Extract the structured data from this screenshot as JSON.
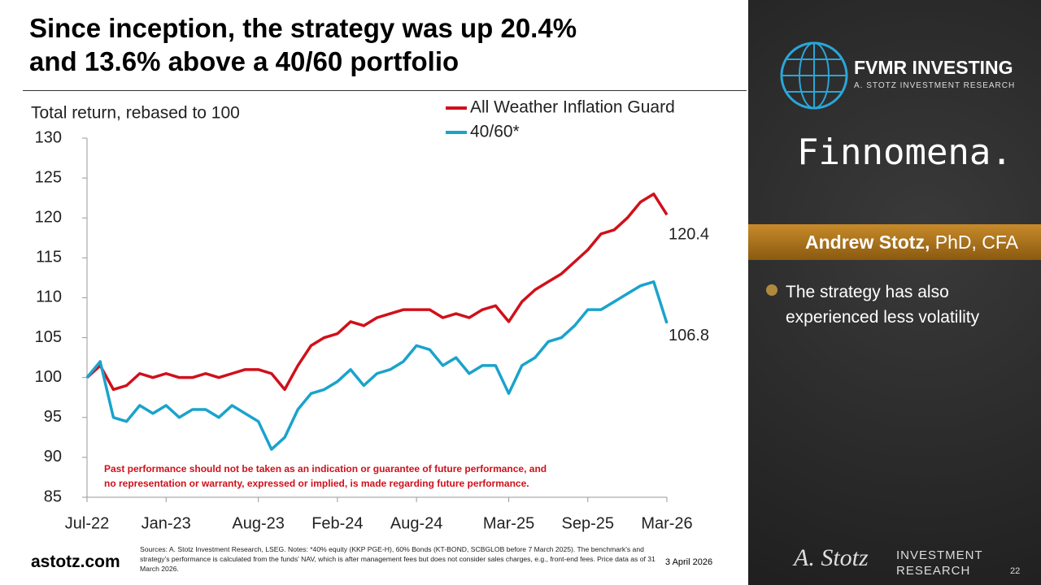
{
  "slide": {
    "title_lines": [
      "Since inception, the strategy was up 20.4%",
      "and 13.6% above a 40/60 portfolio"
    ],
    "website": "astotz.com",
    "sources": "Sources: A. Stotz Investment Research, LSEG. Notes: *40% equity (KKP PGE-H), 60% Bonds (KT-BOND, SCBGLOB before 7 March 2025). The benchmark's and strategy's performance is calculated from the funds' NAV, which is after management fees but does not consider sales charges, e.g., front-end fees. Price data as of 31 March 2026.",
    "date": "3 April 2026",
    "page": "22"
  },
  "sidebar": {
    "brand": "FVMR INVESTING",
    "brand_sub": "A. STOTZ INVESTMENT RESEARCH",
    "partner": "Finnomena.",
    "presenter_name": "Andrew Stotz,",
    "presenter_title": "PhD, CFA",
    "bullet": "The strategy has also experienced less volatility",
    "signature": "A. Stotz",
    "footer_brand_1": "INVESTMENT",
    "footer_brand_2": "RESEARCH"
  },
  "chart_data": {
    "type": "line",
    "ylabel": "Total return, rebased to 100",
    "annotation_lines": [
      "Past performance should not be taken as an indication or guarantee of future performance, and",
      "no representation or warranty, expressed or implied, is made regarding future performance."
    ],
    "categories": [
      "Jul-22",
      null,
      null,
      null,
      null,
      null,
      "Jan-23",
      null,
      null,
      null,
      null,
      null,
      null,
      "Aug-23",
      null,
      null,
      null,
      null,
      null,
      "Feb-24",
      null,
      null,
      null,
      null,
      null,
      "Aug-24",
      null,
      null,
      null,
      null,
      null,
      null,
      "Mar-25",
      null,
      null,
      null,
      null,
      null,
      "Sep-25",
      null,
      null,
      null,
      null,
      null,
      "Mar-26"
    ],
    "series": [
      {
        "name": "All Weather Inflation Guard",
        "color": "#d0101a",
        "values": [
          100,
          101.5,
          98.5,
          99,
          100.5,
          100,
          100.5,
          100,
          100,
          100.5,
          100,
          100.5,
          101,
          101,
          100.5,
          98.5,
          101.5,
          104,
          105,
          105.5,
          107,
          106.5,
          107.5,
          108,
          108.5,
          108.5,
          108.5,
          107.5,
          108,
          107.5,
          108.5,
          109,
          107,
          109.5,
          111,
          112,
          113,
          114.5,
          116,
          118,
          118.5,
          120,
          122,
          123,
          120.4
        ]
      },
      {
        "name": "40/60*",
        "color": "#1aa3cc",
        "values": [
          100,
          102,
          95,
          94.5,
          96.5,
          95.5,
          96.5,
          95,
          96,
          96,
          95,
          96.5,
          95.5,
          94.5,
          91,
          92.5,
          96,
          98,
          98.5,
          99.5,
          101,
          99,
          100.5,
          101,
          102,
          104,
          103.5,
          101.5,
          102.5,
          100.5,
          101.5,
          101.5,
          98,
          101.5,
          102.5,
          104.5,
          105,
          106.5,
          108.5,
          108.5,
          109.5,
          110.5,
          111.5,
          112,
          106.8
        ]
      }
    ],
    "ylim": [
      85,
      130
    ],
    "yticks": [
      85,
      90,
      95,
      100,
      105,
      110,
      115,
      120,
      125,
      130
    ],
    "grid": false
  }
}
